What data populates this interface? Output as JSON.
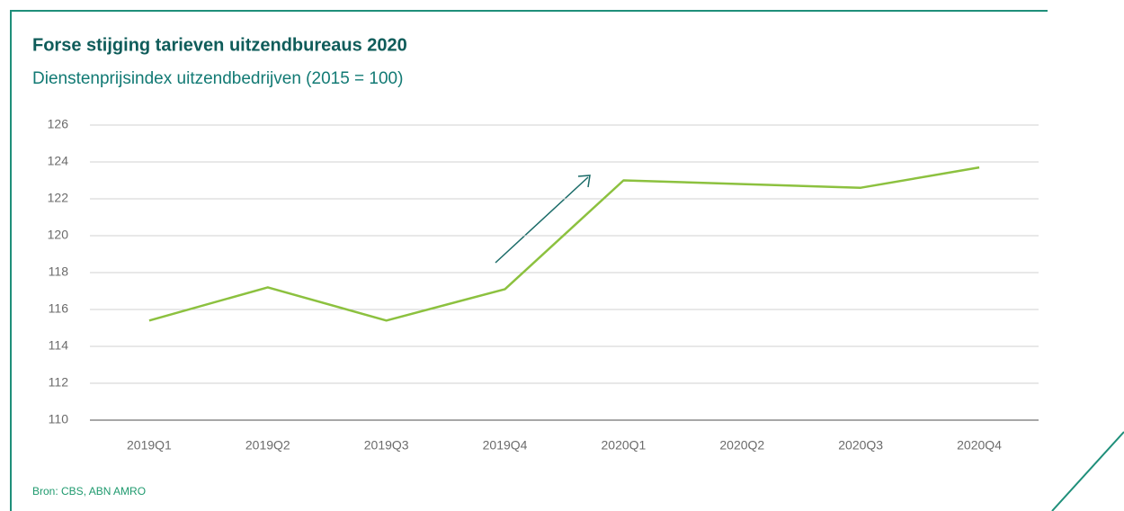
{
  "chart_data": {
    "type": "line",
    "title": "Forse stijging tarieven uitzendbureaus 2020",
    "subtitle": "Dienstenprijsindex uitzendbedrijven (2015 = 100)",
    "source": "Bron: CBS, ABN AMRO",
    "categories": [
      "2019Q1",
      "2019Q2",
      "2019Q3",
      "2019Q4",
      "2020Q1",
      "2020Q2",
      "2020Q3",
      "2020Q4"
    ],
    "values": [
      115.4,
      117.2,
      115.4,
      117.1,
      123.0,
      122.8,
      122.6,
      123.7
    ],
    "color": "#8cc13f",
    "ylim": [
      110,
      126
    ],
    "yticks": [
      110,
      112,
      114,
      116,
      118,
      120,
      122,
      124,
      126
    ],
    "grid": true
  }
}
